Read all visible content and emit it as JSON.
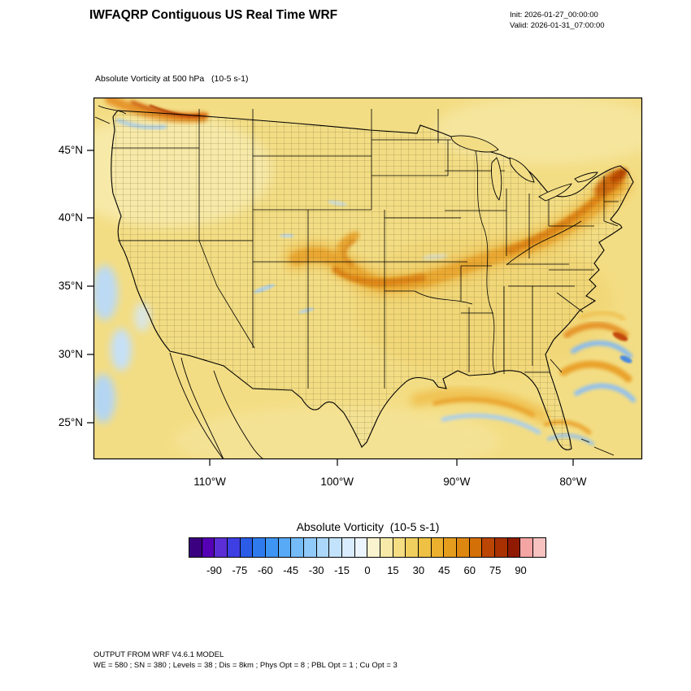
{
  "header": {
    "title": "IWFAQRP Contiguous US Real Time WRF",
    "init_label": "Init: 2026-01-27_00:00:00",
    "valid_label": "Valid: 2026-01-31_07:00:00"
  },
  "plot": {
    "field_title": "Absolute Vorticity at 500 hPa   (10-5 s-1)"
  },
  "chart_data": {
    "type": "heatmap",
    "title": "Absolute Vorticity at 500 hPa (10-5 s-1)",
    "region": "Contiguous US",
    "field": "absolute vorticity",
    "level": "500 hPa",
    "units": "10-5 s-1",
    "value_range": [
      -105,
      105
    ],
    "level_step": 7.5,
    "axes": {
      "lat_ticks": [
        "45°N",
        "40°N",
        "35°N",
        "30°N",
        "25°N"
      ],
      "lon_ticks": [
        "110°W",
        "100°W",
        "90°W",
        "80°W"
      ]
    },
    "colorbar": {
      "title": "Absolute Vorticity  (10-5 s-1)",
      "tick_labels": [
        "-90",
        "-75",
        "-60",
        "-45",
        "-30",
        "-15",
        "0",
        "15",
        "30",
        "45",
        "60",
        "75",
        "90"
      ],
      "colors": [
        "#3a0080",
        "#5500b5",
        "#5b2fd5",
        "#3d3fe3",
        "#2b5ce8",
        "#2f7bee",
        "#3f95f3",
        "#58a9f6",
        "#74bbf8",
        "#90cafa",
        "#abd7fb",
        "#c3e2fc",
        "#d9ecfd",
        "#ecf5fe",
        "#faf3cf",
        "#f7e9a8",
        "#f4dd82",
        "#f1cf5e",
        "#eec043",
        "#eab02e",
        "#e49d1d",
        "#dd8711",
        "#d47008",
        "#bb4503",
        "#a93000",
        "#8f1a00",
        "#f4a4a2",
        "#f8c2c0"
      ]
    },
    "notable_features": {
      "positive_vorticity_band": "curved band ~30-60 units from central Plains across Midwest into New England, maximum near New England",
      "pacific_nw_maximum": "strong positive streak along Pacific Northwest coast",
      "atlantic_eddies": "alternating positive/negative vorticity eddies off southeast coast",
      "pacific_negatives": "weak negative patches off California coast"
    }
  },
  "footer": {
    "line1": "OUTPUT FROM WRF V4.6.1 MODEL",
    "line2": "WE = 580 ; SN = 380 ; Levels = 38 ; Dis = 8km ; Phys Opt = 8 ; PBL Opt = 1 ; Cu Opt = 3"
  }
}
